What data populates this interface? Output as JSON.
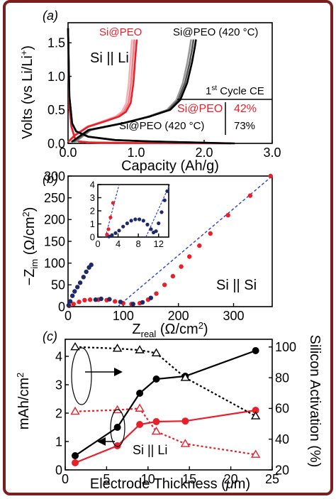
{
  "figure": {
    "frame_color": "#7a1f1f"
  },
  "panels": [
    {
      "letter": "(a)"
    },
    {
      "letter": "(b)"
    },
    {
      "letter": "(c)"
    }
  ],
  "chart_data": [
    {
      "type": "line",
      "panel": "(a)",
      "xlabel": "Capacity (Ah/g)",
      "ylabel": "Volts (vs Li/Li+)",
      "xlim": [
        0,
        3.0
      ],
      "ylim": [
        0,
        1.8
      ],
      "x_ticks": [
        "0.0",
        "1.0",
        "2.0",
        "3.0"
      ],
      "y_ticks": [
        "0.0",
        "0.5",
        "1.0",
        "1.5"
      ],
      "annotations": {
        "cell_label": "Si || Li",
        "series_label_1": "Si@PEO",
        "series_label_2": "Si@PEO (420 °C)",
        "table_header": "1st Cycle CE",
        "table_rows": [
          {
            "name": "Si@PEO",
            "value": "42%",
            "color": "#e8202a"
          },
          {
            "name": "Si@PEO (420 °C)",
            "value": "73%",
            "color": "#000000"
          }
        ]
      },
      "series": [
        {
          "name": "Si@PEO",
          "color": "#e8202a",
          "shades": [
            "#e8202a",
            "#f08088",
            "#f6b0b4"
          ],
          "discharge": [
            [
              0.0,
              1.72
            ],
            [
              0.02,
              0.55
            ],
            [
              0.05,
              0.25
            ],
            [
              0.1,
              0.08
            ],
            [
              0.15,
              0.03
            ],
            [
              0.3,
              0.015
            ],
            [
              0.6,
              0.01
            ],
            [
              1.0,
              0.005
            ],
            [
              1.6,
              0.003
            ],
            [
              2.4,
              0.0
            ]
          ],
          "charge": [
            [
              0.0,
              0.02
            ],
            [
              0.1,
              0.12
            ],
            [
              0.3,
              0.25
            ],
            [
              0.55,
              0.33
            ],
            [
              0.75,
              0.4
            ],
            [
              0.85,
              0.47
            ],
            [
              0.92,
              0.6
            ],
            [
              0.96,
              0.9
            ],
            [
              0.99,
              1.3
            ],
            [
              1.01,
              1.55
            ]
          ]
        },
        {
          "name": "Si@PEO (420 °C)",
          "color": "#000000",
          "shades": [
            "#000000",
            "#555555",
            "#999999"
          ],
          "discharge": [
            [
              0.0,
              1.72
            ],
            [
              0.02,
              0.7
            ],
            [
              0.06,
              0.3
            ],
            [
              0.12,
              0.18
            ],
            [
              0.3,
              0.1
            ],
            [
              0.7,
              0.05
            ],
            [
              1.2,
              0.03
            ],
            [
              1.8,
              0.015
            ],
            [
              2.2,
              0.005
            ],
            [
              2.45,
              0.0
            ]
          ],
          "charge": [
            [
              0.05,
              0.02
            ],
            [
              0.3,
              0.2
            ],
            [
              0.8,
              0.3
            ],
            [
              1.2,
              0.4
            ],
            [
              1.5,
              0.5
            ],
            [
              1.65,
              0.65
            ],
            [
              1.75,
              0.9
            ],
            [
              1.82,
              1.2
            ],
            [
              1.86,
              1.42
            ],
            [
              1.88,
              1.55
            ]
          ]
        }
      ]
    },
    {
      "type": "scatter",
      "panel": "(b)",
      "xlabel": "Zreal (Ω/cm2)",
      "ylabel": "−Zim (Ω/cm2)",
      "xlim": [
        0,
        370
      ],
      "ylim": [
        0,
        300
      ],
      "x_ticks": [
        "0",
        "100",
        "200",
        "300"
      ],
      "y_ticks": [
        "0",
        "50",
        "100",
        "150",
        "200",
        "250",
        "300"
      ],
      "annotations": {
        "cell_label": "Si || Si"
      },
      "series": [
        {
          "name": "",
          "color": "#e8202a",
          "points": [
            [
              2,
              2
            ],
            [
              10,
              6
            ],
            [
              20,
              11
            ],
            [
              30,
              15
            ],
            [
              40,
              16
            ],
            [
              55,
              16
            ],
            [
              70,
              15
            ],
            [
              85,
              12
            ],
            [
              100,
              8
            ],
            [
              115,
              6
            ],
            [
              130,
              8
            ],
            [
              145,
              16
            ],
            [
              160,
              30
            ],
            [
              175,
              50
            ],
            [
              190,
              70
            ],
            [
              205,
              92
            ],
            [
              220,
              115
            ],
            [
              238,
              140
            ],
            [
              258,
              168
            ],
            [
              290,
              210
            ],
            [
              330,
              255
            ],
            [
              367,
              300
            ]
          ]
        },
        {
          "name": "",
          "color": "#1c2a6a",
          "points": [
            [
              1,
              3
            ],
            [
              4,
              12
            ],
            [
              8,
              25
            ],
            [
              12,
              35
            ],
            [
              17,
              45
            ],
            [
              22,
              55
            ],
            [
              28,
              68
            ],
            [
              33,
              80
            ],
            [
              38,
              90
            ],
            [
              42,
              96
            ],
            [
              50,
              16
            ],
            [
              60,
              18
            ],
            [
              75,
              17
            ],
            [
              95,
              11
            ],
            [
              118,
              6
            ],
            [
              135,
              10
            ],
            [
              150,
              20
            ]
          ]
        }
      ],
      "fit_line": {
        "color": "#2a40c8",
        "points": [
          [
            90,
            0
          ],
          [
            370,
            300
          ]
        ]
      },
      "inset": {
        "xlim": [
          0,
          14
        ],
        "ylim": [
          0,
          4
        ],
        "x_ticks": [
          "0",
          "4",
          "8",
          "12"
        ],
        "y_ticks": [
          "0",
          "1",
          "2",
          "3",
          "4"
        ],
        "red_points": [
          [
            1.8,
            0.2
          ],
          [
            2.1,
            0.6
          ],
          [
            2.5,
            1.5
          ],
          [
            3.0,
            2.6
          ]
        ],
        "navy_points": [
          [
            2.2,
            0.05
          ],
          [
            2.8,
            0.15
          ],
          [
            3.5,
            0.3
          ],
          [
            4.2,
            0.5
          ],
          [
            5.0,
            0.8
          ],
          [
            5.8,
            1.05
          ],
          [
            6.6,
            1.25
          ],
          [
            7.4,
            1.35
          ],
          [
            8.2,
            1.35
          ],
          [
            9.0,
            1.25
          ],
          [
            9.8,
            0.95
          ],
          [
            10.5,
            0.6
          ],
          [
            11.0,
            0.35
          ],
          [
            11.5,
            0.45
          ],
          [
            12.0,
            1.05
          ],
          [
            12.6,
            1.9
          ],
          [
            13.2,
            2.8
          ],
          [
            13.7,
            3.5
          ]
        ],
        "fit_lines": [
          [
            [
              1.5,
              0
            ],
            [
              4.2,
              4.0
            ]
          ],
          [
            [
              9.5,
              0
            ],
            [
              14.2,
              4.0
            ]
          ]
        ]
      }
    },
    {
      "type": "line",
      "panel": "(c)",
      "xlabel": "Electrode Thickness (μm)",
      "ylabel": "mAh/cm2",
      "y2label": "Silicon Activation (%)",
      "xlim": [
        0,
        25
      ],
      "ylim": [
        0,
        4.6
      ],
      "y2lim": [
        20,
        105
      ],
      "x_ticks": [
        "0",
        "5",
        "10",
        "15",
        "20",
        "25"
      ],
      "y_ticks": [
        "0",
        "1",
        "2",
        "3",
        "4"
      ],
      "y2_ticks": [
        "20",
        "40",
        "60",
        "80",
        "100"
      ],
      "annotations": {
        "cell_label": "Si || Li"
      },
      "x": [
        1.2,
        6.3,
        9.0,
        11.0,
        14.5,
        23.0
      ],
      "series": [
        {
          "name": "",
          "axis": "left",
          "color": "#000000",
          "marker": "circle",
          "values": [
            0.5,
            1.5,
            2.7,
            3.2,
            3.3,
            4.2
          ]
        },
        {
          "name": "",
          "axis": "left",
          "color": "#e8202a",
          "marker": "circle",
          "values": [
            0.25,
            0.85,
            1.6,
            1.7,
            1.72,
            2.1
          ]
        },
        {
          "name": "",
          "axis": "right",
          "color": "#000000",
          "marker": "triangle",
          "dashed": true,
          "values": [
            100,
            99,
            98,
            96,
            80,
            55
          ]
        },
        {
          "name": "",
          "axis": "right",
          "color": "#e8202a",
          "marker": "triangle",
          "dashed": true,
          "values": [
            58,
            59,
            60,
            45,
            37,
            30
          ]
        }
      ]
    }
  ]
}
